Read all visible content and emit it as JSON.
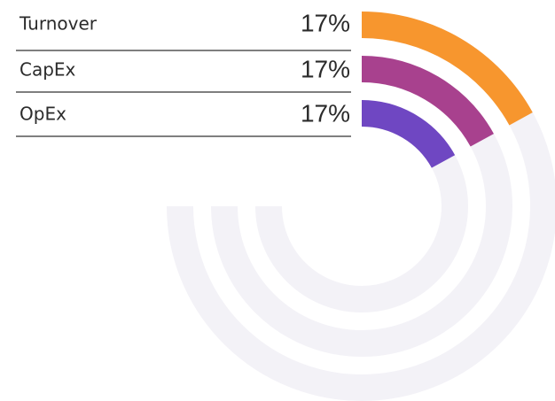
{
  "chart_data": {
    "type": "radial-bar",
    "categories": [
      "Turnover",
      "CapEx",
      "OpEx"
    ],
    "values": [
      17,
      17,
      17
    ],
    "value_labels": [
      "17%",
      "17%",
      "17%"
    ],
    "colors": [
      "#f7962e",
      "#a8418e",
      "#6f47c2"
    ],
    "ylim": [
      0,
      100
    ]
  }
}
